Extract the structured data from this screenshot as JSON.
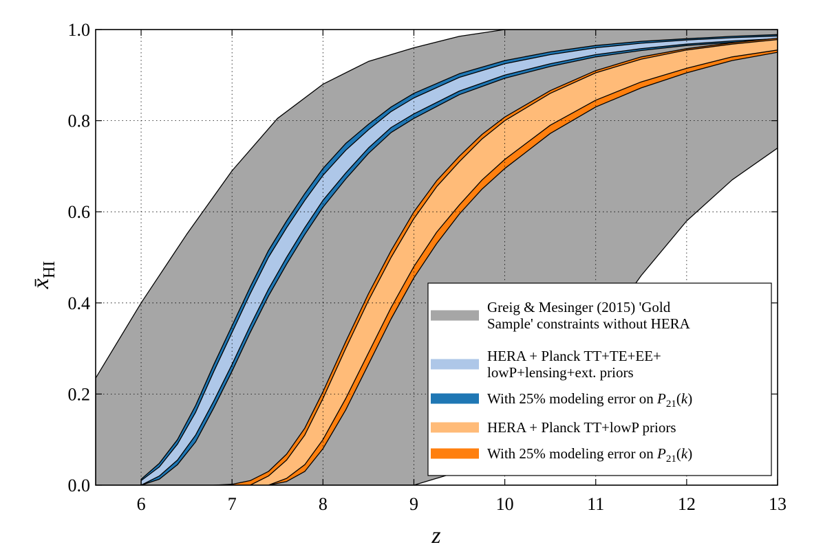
{
  "chart_data": {
    "type": "area",
    "xlabel": "z",
    "ylabel": "x̄",
    "ylabel_subscript": "HI",
    "xlim": [
      5.5,
      13
    ],
    "ylim": [
      0.0,
      1.0
    ],
    "xticks": [
      6,
      7,
      8,
      9,
      10,
      11,
      12,
      13
    ],
    "yticks": [
      0.0,
      0.2,
      0.4,
      0.6,
      0.8,
      1.0
    ],
    "xtick_labels": [
      "6",
      "7",
      "8",
      "9",
      "10",
      "11",
      "12",
      "13"
    ],
    "ytick_labels": [
      "0.0",
      "0.2",
      "0.4",
      "0.6",
      "0.8",
      "1.0"
    ],
    "grid": true,
    "legend_position": "lower-right",
    "series": [
      {
        "name": "Greig & Mesinger (2015) 'Gold Sample' constraints without HERA",
        "legend_lines": [
          "Greig & Mesinger (2015) 'Gold",
          "Sample' constraints without HERA"
        ],
        "color": "#a6a6a6",
        "upper": {
          "x": [
            5.5,
            6.0,
            6.5,
            7.0,
            7.5,
            8.0,
            8.5,
            9.0,
            9.5,
            10.0,
            13.0
          ],
          "y": [
            0.235,
            0.4,
            0.55,
            0.69,
            0.805,
            0.88,
            0.93,
            0.96,
            0.985,
            1.0,
            1.0
          ]
        },
        "lower": {
          "x": [
            5.5,
            9.0,
            9.5,
            10.0,
            10.5,
            11.0,
            11.5,
            12.0,
            12.5,
            13.0
          ],
          "y": [
            0.0,
            0.0,
            0.03,
            0.09,
            0.2,
            0.32,
            0.46,
            0.58,
            0.67,
            0.74
          ]
        }
      },
      {
        "name": "HERA + Planck TT+TE+EE+ lowP+lensing+ext. priors",
        "legend_lines": [
          "HERA + Planck TT+TE+EE+",
          "lowP+lensing+ext. priors"
        ],
        "color": "#aec7e8",
        "upper": {
          "x": [
            6.0,
            6.2,
            6.4,
            6.6,
            6.8,
            7.0,
            7.2,
            7.4,
            7.6,
            7.8,
            8.0,
            8.25,
            8.5,
            8.75,
            9.0,
            9.5,
            10.0,
            10.5,
            11.0,
            11.5,
            12.0,
            12.5,
            13.0
          ],
          "y": [
            0.01,
            0.04,
            0.09,
            0.16,
            0.25,
            0.335,
            0.42,
            0.5,
            0.565,
            0.625,
            0.68,
            0.735,
            0.78,
            0.82,
            0.85,
            0.895,
            0.925,
            0.945,
            0.96,
            0.97,
            0.977,
            0.982,
            0.986
          ]
        },
        "lower": {
          "x": [
            6.0,
            6.2,
            6.4,
            6.6,
            6.8,
            7.0,
            7.2,
            7.4,
            7.6,
            7.8,
            8.0,
            8.25,
            8.5,
            8.75,
            9.0,
            9.5,
            10.0,
            10.5,
            11.0,
            11.5,
            12.0,
            12.5,
            13.0
          ],
          "y": [
            0.0,
            0.02,
            0.055,
            0.11,
            0.185,
            0.265,
            0.35,
            0.43,
            0.5,
            0.565,
            0.625,
            0.685,
            0.74,
            0.785,
            0.815,
            0.865,
            0.9,
            0.925,
            0.945,
            0.958,
            0.968,
            0.975,
            0.98
          ]
        }
      },
      {
        "name": "With 25% modeling error on P21(k)",
        "legend_lines": [
          "With 25% modeling error on "
        ],
        "legend_math": "P",
        "legend_math_sub": "21",
        "legend_math_tail": "(k)",
        "color": "#1f77b4",
        "upper": {
          "x": [
            6.0,
            6.2,
            6.4,
            6.6,
            6.8,
            7.0,
            7.2,
            7.4,
            7.6,
            7.8,
            8.0,
            8.25,
            8.5,
            8.75,
            9.0,
            9.5,
            10.0,
            10.5,
            11.0,
            11.5,
            12.0,
            12.5,
            13.0
          ],
          "y": [
            0.013,
            0.048,
            0.1,
            0.175,
            0.265,
            0.35,
            0.435,
            0.515,
            0.58,
            0.64,
            0.695,
            0.75,
            0.792,
            0.83,
            0.86,
            0.903,
            0.932,
            0.951,
            0.965,
            0.974,
            0.98,
            0.985,
            0.989
          ]
        },
        "lower": {
          "x": [
            6.0,
            6.2,
            6.4,
            6.6,
            6.8,
            7.0,
            7.2,
            7.4,
            7.6,
            7.8,
            8.0,
            8.25,
            8.5,
            8.75,
            9.0,
            9.5,
            10.0,
            10.5,
            11.0,
            11.5,
            12.0,
            12.5,
            13.0
          ],
          "y": [
            0.0,
            0.013,
            0.045,
            0.095,
            0.17,
            0.25,
            0.335,
            0.415,
            0.485,
            0.55,
            0.61,
            0.672,
            0.728,
            0.774,
            0.805,
            0.857,
            0.893,
            0.919,
            0.94,
            0.954,
            0.965,
            0.972,
            0.978
          ]
        }
      },
      {
        "name": "HERA + Planck TT+lowP priors",
        "legend_lines": [
          "HERA + Planck TT+lowP priors"
        ],
        "color": "#ffbb78",
        "upper": {
          "x": [
            7.2,
            7.4,
            7.6,
            7.8,
            8.0,
            8.25,
            8.5,
            8.75,
            9.0,
            9.25,
            9.5,
            9.75,
            10.0,
            10.5,
            11.0,
            11.5,
            12.0,
            12.5,
            13.0
          ],
          "y": [
            0.0,
            0.02,
            0.055,
            0.11,
            0.19,
            0.3,
            0.405,
            0.5,
            0.585,
            0.655,
            0.71,
            0.76,
            0.8,
            0.86,
            0.905,
            0.935,
            0.955,
            0.968,
            0.978
          ]
        },
        "lower": {
          "x": [
            7.4,
            7.6,
            7.8,
            8.0,
            8.25,
            8.5,
            8.75,
            9.0,
            9.25,
            9.5,
            9.75,
            10.0,
            10.5,
            11.0,
            11.5,
            12.0,
            12.5,
            13.0
          ],
          "y": [
            0.0,
            0.015,
            0.045,
            0.1,
            0.19,
            0.29,
            0.39,
            0.48,
            0.555,
            0.615,
            0.67,
            0.715,
            0.79,
            0.845,
            0.885,
            0.915,
            0.94,
            0.955
          ]
        }
      },
      {
        "name": "With 25% modeling error on P21(k)",
        "legend_lines": [
          "With 25% modeling error on "
        ],
        "legend_math": "P",
        "legend_math_sub": "21",
        "legend_math_tail": "(k)",
        "color": "#ff7f0e",
        "upper": {
          "x": [
            6.8,
            7.0,
            7.2,
            7.4,
            7.6,
            7.8,
            8.0,
            8.25,
            8.5,
            8.75,
            9.0,
            9.25,
            9.5,
            9.75,
            10.0,
            10.5,
            11.0,
            11.5,
            12.0,
            12.5,
            13.0
          ],
          "y": [
            0.0,
            0.002,
            0.01,
            0.03,
            0.068,
            0.125,
            0.205,
            0.315,
            0.42,
            0.515,
            0.6,
            0.668,
            0.722,
            0.77,
            0.808,
            0.866,
            0.91,
            0.94,
            0.958,
            0.971,
            0.981
          ]
        },
        "lower": {
          "x": [
            7.4,
            7.6,
            7.8,
            8.0,
            8.25,
            8.5,
            8.75,
            9.0,
            9.25,
            9.5,
            9.75,
            10.0,
            10.5,
            11.0,
            11.5,
            12.0,
            12.5,
            13.0
          ],
          "y": [
            0.0,
            0.008,
            0.03,
            0.08,
            0.165,
            0.265,
            0.365,
            0.455,
            0.53,
            0.595,
            0.65,
            0.695,
            0.772,
            0.83,
            0.872,
            0.905,
            0.932,
            0.95
          ]
        }
      }
    ]
  }
}
